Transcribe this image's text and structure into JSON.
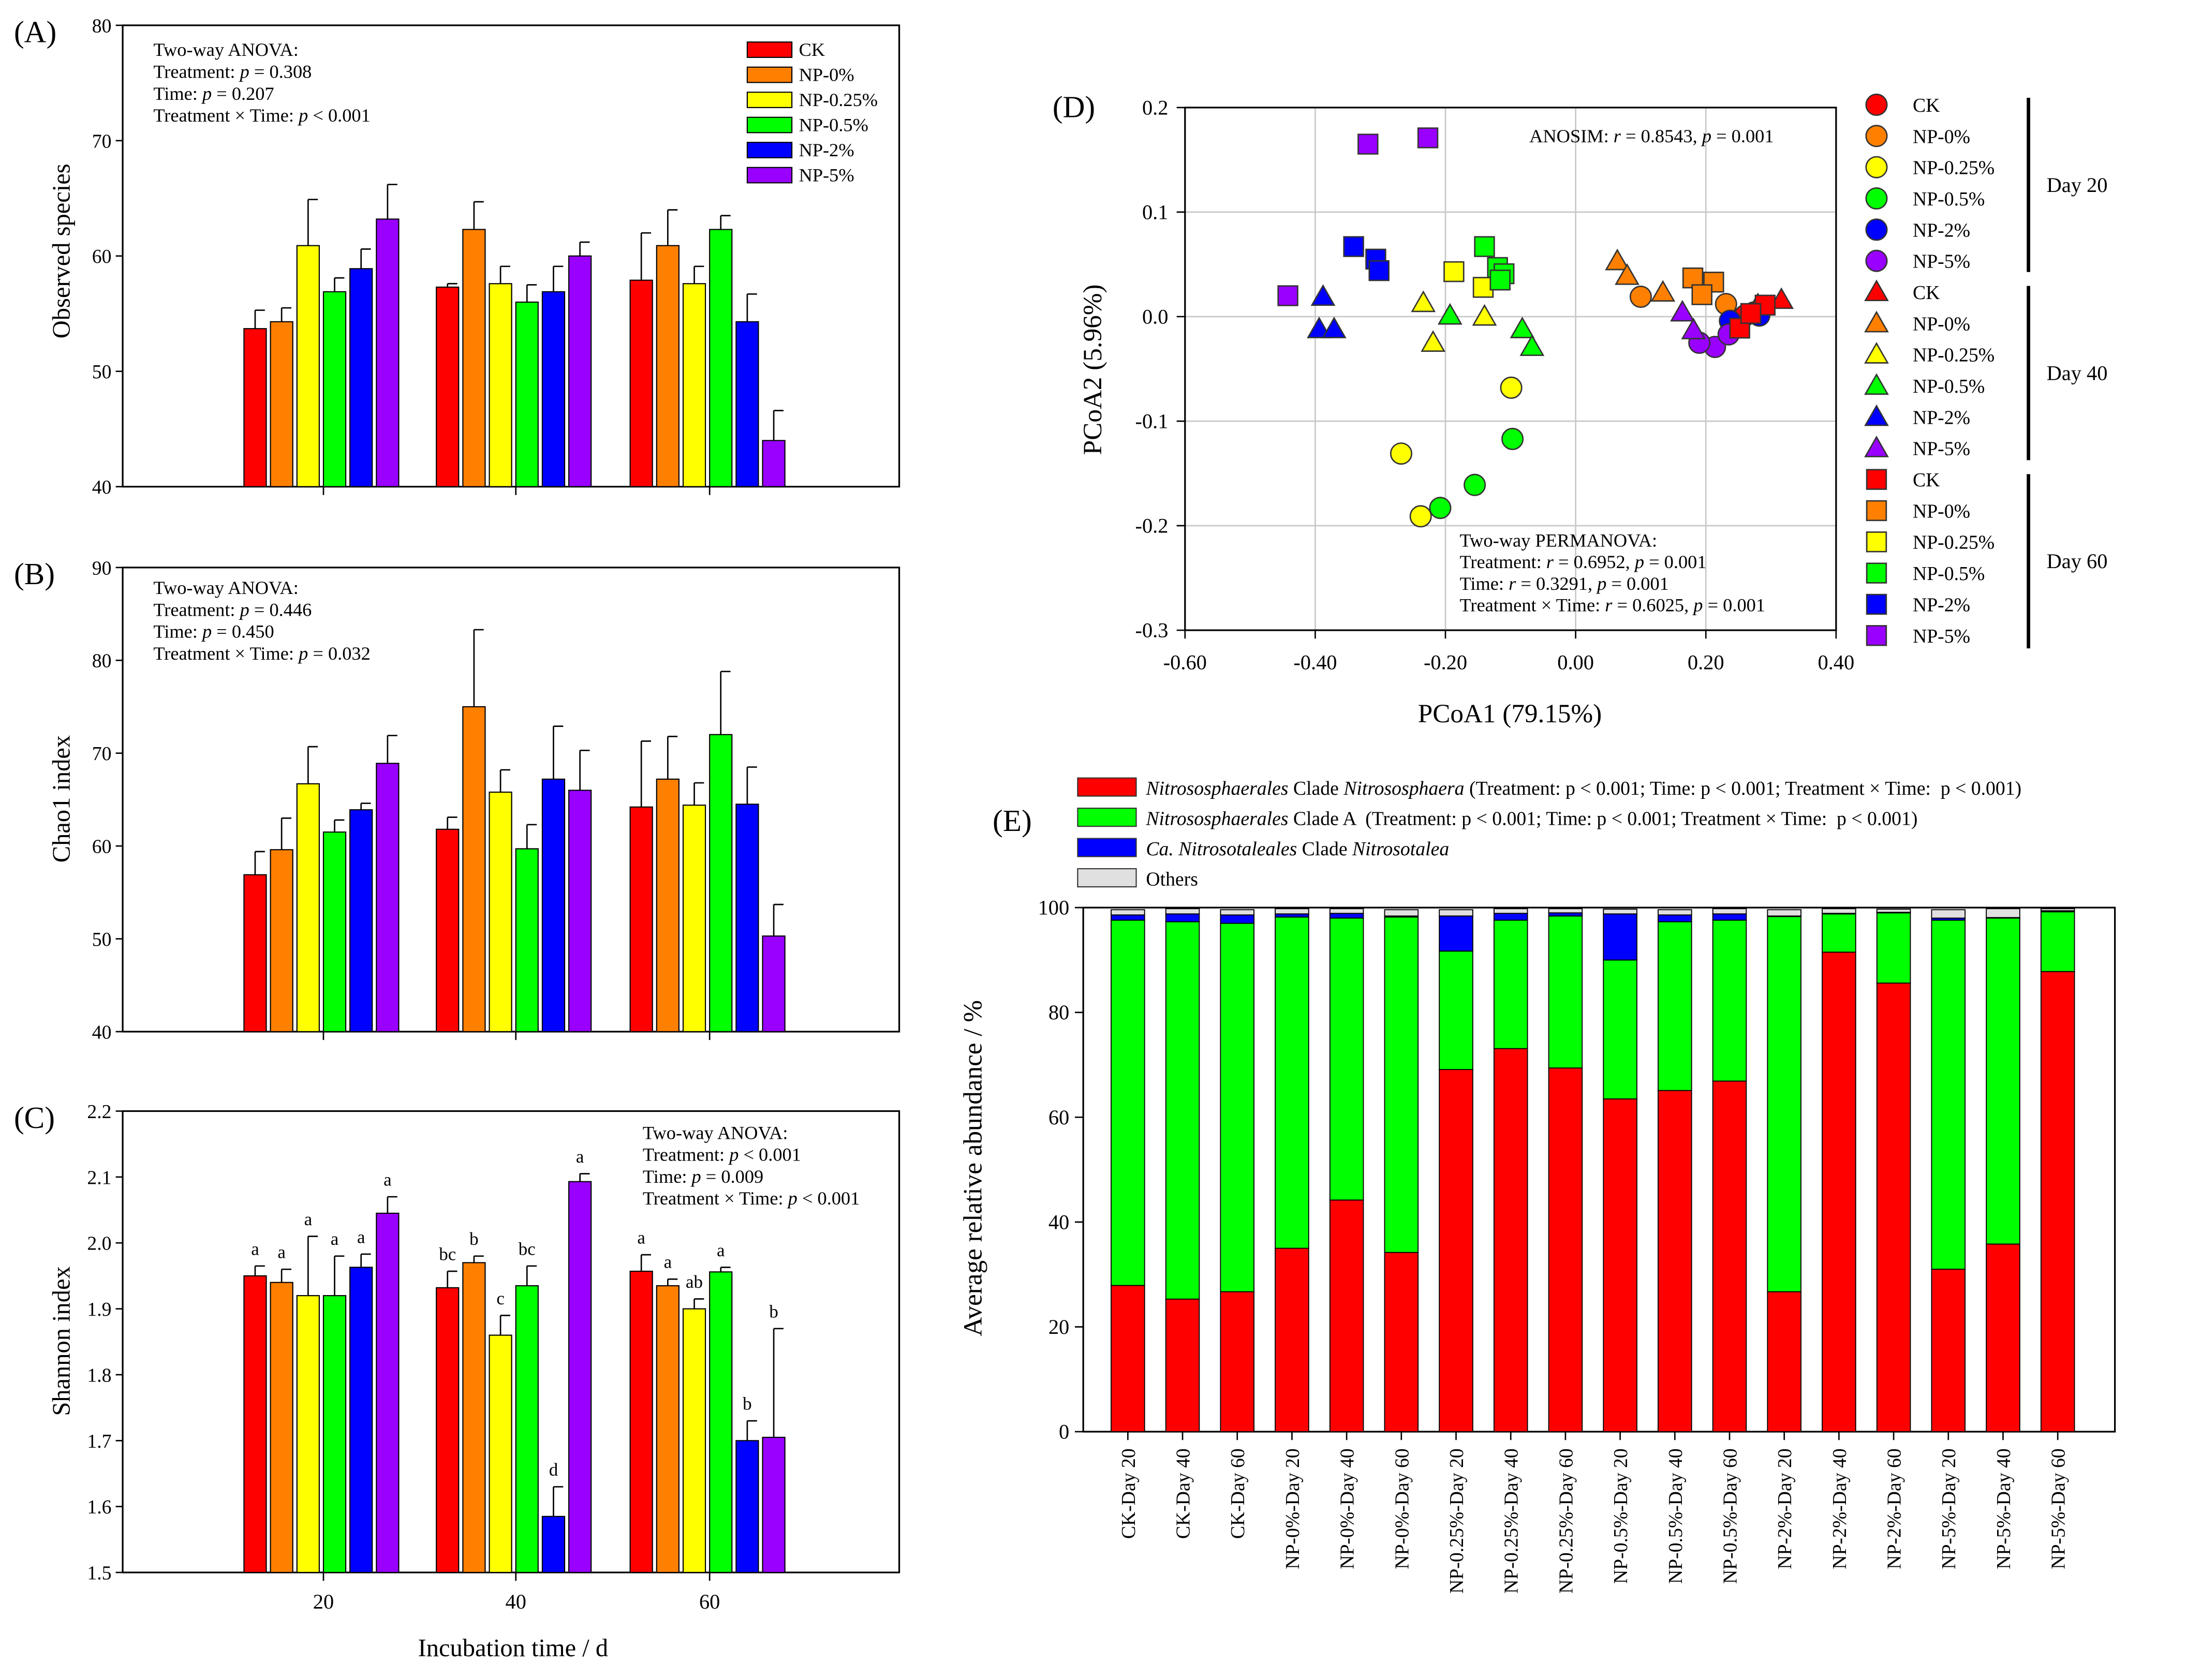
{
  "colors": {
    "CK": "#ff0000",
    "NP-0%": "#ff8000",
    "NP-0.25%": "#ffff00",
    "NP-0.5%": "#00ff00",
    "NP-2%": "#0000ff",
    "NP-5%": "#9900ff",
    "clade_nitrososphaera": "#ff0000",
    "clade_a": "#00ff00",
    "clade_nitrosotalea": "#0000ff",
    "others": "#e0e0e0"
  },
  "chart_data": [
    {
      "panel": "(A)",
      "type": "bar",
      "ylabel": "Observed species",
      "xlabel": "",
      "ylim": [
        40,
        80
      ],
      "yticks": [
        "40",
        "50",
        "60",
        "70",
        "80"
      ],
      "categories": [
        "20",
        "40",
        "60"
      ],
      "legend": [
        "CK",
        "NP-0%",
        "NP-0.25%",
        "NP-0.5%",
        "NP-2%",
        "NP-5%"
      ],
      "legend_position": "top-right",
      "annotation": [
        "Two-way ANOVA:",
        "Treatment: p = 0.308",
        "Time: p = 0.207",
        "Treatment × Time: p < 0.001"
      ],
      "series": [
        {
          "name": "CK",
          "values": [
            53.7,
            57.3,
            57.9
          ],
          "errors": [
            1.6,
            0.3,
            4.1
          ]
        },
        {
          "name": "NP-0%",
          "values": [
            54.3,
            62.3,
            60.9
          ],
          "errors": [
            1.2,
            2.4,
            3.1
          ]
        },
        {
          "name": "NP-0.25%",
          "values": [
            60.9,
            57.6,
            57.6
          ],
          "errors": [
            4.0,
            1.5,
            1.5
          ]
        },
        {
          "name": "NP-0.5%",
          "values": [
            56.9,
            56.0,
            62.3
          ],
          "errors": [
            1.2,
            1.5,
            1.2
          ]
        },
        {
          "name": "NP-2%",
          "values": [
            58.9,
            56.9,
            54.3
          ],
          "errors": [
            1.7,
            2.2,
            2.4
          ]
        },
        {
          "name": "NP-5%",
          "values": [
            63.2,
            60.0,
            44.0
          ],
          "errors": [
            3.0,
            1.2,
            2.6
          ]
        }
      ]
    },
    {
      "panel": "(B)",
      "type": "bar",
      "ylabel": "Chao1 index",
      "xlabel": "",
      "ylim": [
        40,
        90
      ],
      "yticks": [
        "40",
        "50",
        "60",
        "70",
        "80",
        "90"
      ],
      "categories": [
        "20",
        "40",
        "60"
      ],
      "annotation": [
        "Two-way ANOVA:",
        "Treatment: p = 0.446",
        "Time: p = 0.450",
        "Treatment × Time: p = 0.032"
      ],
      "series": [
        {
          "name": "CK",
          "values": [
            56.9,
            61.8,
            64.2
          ],
          "errors": [
            2.5,
            1.3,
            7.1
          ]
        },
        {
          "name": "NP-0%",
          "values": [
            59.6,
            75.0,
            67.2
          ],
          "errors": [
            3.4,
            8.3,
            4.6
          ]
        },
        {
          "name": "NP-0.25%",
          "values": [
            66.7,
            65.8,
            64.4
          ],
          "errors": [
            4.0,
            2.4,
            2.4
          ]
        },
        {
          "name": "NP-0.5%",
          "values": [
            61.5,
            59.7,
            72.0
          ],
          "errors": [
            1.3,
            2.6,
            6.8
          ]
        },
        {
          "name": "NP-2%",
          "values": [
            63.9,
            67.2,
            64.5
          ],
          "errors": [
            0.7,
            5.7,
            4.0
          ]
        },
        {
          "name": "NP-5%",
          "values": [
            68.9,
            66.0,
            50.3
          ],
          "errors": [
            3.0,
            4.3,
            3.4
          ]
        }
      ]
    },
    {
      "panel": "(C)",
      "type": "bar",
      "ylabel": "Shannon index",
      "xlabel": "Incubation time / d",
      "ylim": [
        1.5,
        2.2
      ],
      "yticks": [
        "1.5",
        "1.6",
        "1.7",
        "1.8",
        "1.9",
        "2.0",
        "2.1",
        "2.2"
      ],
      "categories": [
        "20",
        "40",
        "60"
      ],
      "annotation": [
        "Two-way ANOVA:",
        "Treatment: p < 0.001",
        "Time: p = 0.009",
        "Treatment × Time: p < 0.001"
      ],
      "series": [
        {
          "name": "CK",
          "values": [
            1.95,
            1.932,
            1.957
          ],
          "errors": [
            0.015,
            0.025,
            0.025
          ],
          "letters": [
            "a",
            "bc",
            "a"
          ]
        },
        {
          "name": "NP-0%",
          "values": [
            1.94,
            1.97,
            1.935
          ],
          "errors": [
            0.02,
            0.01,
            0.01
          ],
          "letters": [
            "a",
            "b",
            "a"
          ]
        },
        {
          "name": "NP-0.25%",
          "values": [
            1.92,
            1.86,
            1.9
          ],
          "errors": [
            0.09,
            0.03,
            0.015
          ],
          "letters": [
            "a",
            "c",
            "ab"
          ]
        },
        {
          "name": "NP-0.5%",
          "values": [
            1.92,
            1.935,
            1.956
          ],
          "errors": [
            0.06,
            0.03,
            0.007
          ],
          "letters": [
            "a",
            "bc",
            "a"
          ]
        },
        {
          "name": "NP-2%",
          "values": [
            1.963,
            1.585,
            1.7
          ],
          "errors": [
            0.02,
            0.045,
            0.03
          ],
          "letters": [
            "a",
            "d",
            "b"
          ]
        },
        {
          "name": "NP-5%",
          "values": [
            2.045,
            2.093,
            1.705
          ],
          "errors": [
            0.025,
            0.012,
            0.165
          ],
          "letters": [
            "a",
            "a",
            "b"
          ]
        }
      ]
    },
    {
      "panel": "(D)",
      "type": "scatter",
      "xlabel": "PCoA1 (79.15%)",
      "ylabel": "PCoA2 (5.96%)",
      "xlim": [
        -0.6,
        0.4
      ],
      "ylim": [
        -0.3,
        0.2
      ],
      "xticks": [
        "-0.60",
        "-0.40",
        "-0.20",
        "0.00",
        "0.20",
        "0.40"
      ],
      "yticks": [
        "-0.3",
        "-0.2",
        "-0.1",
        "0.0",
        "0.1",
        "0.2"
      ],
      "grid": true,
      "anosim": "ANOSIM: r = 0.8543, p = 0.001",
      "permanova": [
        "Two-way PERMANOVA:",
        "Treatment: r = 0.6952, p = 0.001",
        "Time: r = 0.3291, p = 0.001",
        "Treatment × Time: r = 0.6025, p = 0.001"
      ],
      "groups": [
        {
          "day": "Day 20",
          "marker": "circle",
          "series": [
            {
              "name": "CK",
              "points": [
                [
                  0.26,
                  0.001
                ],
                [
                  0.274,
                  0.004
                ]
              ]
            },
            {
              "name": "NP-0%",
              "points": [
                [
                  0.1,
                  0.019
                ],
                [
                  0.231,
                  0.012
                ]
              ]
            },
            {
              "name": "NP-0.25%",
              "points": [
                [
                  -0.268,
                  -0.131
                ],
                [
                  -0.238,
                  -0.191
                ],
                [
                  -0.099,
                  -0.068
                ]
              ]
            },
            {
              "name": "NP-0.5%",
              "points": [
                [
                  -0.208,
                  -0.183
                ],
                [
                  -0.155,
                  -0.161
                ],
                [
                  -0.097,
                  -0.117
                ]
              ]
            },
            {
              "name": "NP-2%",
              "points": [
                [
                  0.237,
                  -0.004
                ],
                [
                  0.282,
                  0.001
                ]
              ]
            },
            {
              "name": "NP-5%",
              "points": [
                [
                  0.214,
                  -0.029
                ],
                [
                  0.19,
                  -0.025
                ],
                [
                  0.235,
                  -0.017
                ]
              ]
            }
          ]
        },
        {
          "day": "Day 40",
          "marker": "triangle",
          "series": [
            {
              "name": "CK",
              "points": [
                [
                  0.316,
                  0.016
                ],
                [
                  0.28,
                  0.011
                ]
              ]
            },
            {
              "name": "NP-0%",
              "points": [
                [
                  0.064,
                  0.053
                ],
                [
                  0.079,
                  0.039
                ],
                [
                  0.134,
                  0.023
                ]
              ]
            },
            {
              "name": "NP-0.25%",
              "points": [
                [
                  -0.234,
                  0.013
                ],
                [
                  -0.219,
                  -0.025
                ],
                [
                  -0.14,
                  0.0
                ]
              ]
            },
            {
              "name": "NP-0.5%",
              "points": [
                [
                  -0.193,
                  0.001
                ],
                [
                  -0.082,
                  -0.012
                ],
                [
                  -0.067,
                  -0.029
                ]
              ]
            },
            {
              "name": "NP-2%",
              "points": [
                [
                  -0.388,
                  0.019
                ],
                [
                  -0.394,
                  -0.012
                ],
                [
                  -0.371,
                  -0.012
                ]
              ]
            },
            {
              "name": "NP-5%",
              "points": [
                [
                  0.164,
                  0.004
                ],
                [
                  0.181,
                  -0.013
                ]
              ]
            }
          ]
        },
        {
          "day": "Day 60",
          "marker": "square",
          "series": [
            {
              "name": "CK",
              "points": [
                [
                  0.252,
                  -0.011
                ],
                [
                  0.291,
                  0.011
                ],
                [
                  0.269,
                  0.003
                ]
              ]
            },
            {
              "name": "NP-0%",
              "points": [
                [
                  0.18,
                  0.037
                ],
                [
                  0.212,
                  0.033
                ],
                [
                  0.194,
                  0.021
                ]
              ]
            },
            {
              "name": "NP-0.25%",
              "points": [
                [
                  -0.187,
                  0.043
                ],
                [
                  -0.142,
                  0.028
                ]
              ]
            },
            {
              "name": "NP-0.5%",
              "points": [
                [
                  -0.14,
                  0.067
                ],
                [
                  -0.12,
                  0.047
                ],
                [
                  -0.11,
                  0.041
                ],
                [
                  -0.116,
                  0.035
                ]
              ]
            },
            {
              "name": "NP-2%",
              "points": [
                [
                  -0.341,
                  0.067
                ],
                [
                  -0.307,
                  0.055
                ],
                [
                  -0.302,
                  0.044
                ]
              ]
            },
            {
              "name": "NP-5%",
              "points": [
                [
                  -0.442,
                  0.02
                ],
                [
                  -0.319,
                  0.165
                ],
                [
                  -0.227,
                  0.171
                ]
              ]
            }
          ]
        }
      ]
    },
    {
      "panel": "(E)",
      "type": "bar",
      "stacked": true,
      "ylabel": "Average relative abundance / %",
      "xlabel": "",
      "ylim": [
        0,
        100
      ],
      "yticks": [
        "0",
        "20",
        "40",
        "60",
        "80",
        "100"
      ],
      "categories": [
        "CK-Day 20",
        "CK-Day 40",
        "CK-Day 60",
        "NP-0%-Day 20",
        "NP-0%-Day 40",
        "NP-0%-Day 60",
        "NP-0.25%-Day 20",
        "NP-0.25%-Day 40",
        "NP-0.25%-Day 60",
        "NP-0.5%-Day 20",
        "NP-0.5%-Day 40",
        "NP-0.5%-Day 60",
        "NP-2%-Day 20",
        "NP-2%-Day 40",
        "NP-2%-Day 60",
        "NP-5%-Day 20",
        "NP-5%-Day 40",
        "NP-5%-Day 60"
      ],
      "legend": [
        [
          {
            "t": "Nitrososphaerales",
            "i": true
          },
          {
            "t": " Clade ",
            "i": false
          },
          {
            "t": "Nitrososphaera",
            "i": true
          },
          {
            "t": " (Treatment: p < 0.001; Time: p < 0.001; Treatment × Time:  p < 0.001)",
            "i": false
          }
        ],
        [
          {
            "t": "Nitrososphaerales",
            "i": true
          },
          {
            "t": " Clade A  (Treatment: p < 0.001; Time: p < 0.001; Treatment × Time:  p < 0.001)",
            "i": false
          }
        ],
        [
          {
            "t": "Ca. Nitrosotaleales",
            "i": true
          },
          {
            "t": " Clade ",
            "i": false
          },
          {
            "t": "Nitrosotalea",
            "i": true
          }
        ],
        [
          {
            "t": "Others",
            "i": false
          }
        ]
      ],
      "series": [
        {
          "name": "Nitrososphaerales Clade Nitrososphaera",
          "values": [
            27.9,
            25.3,
            26.7,
            35.0,
            44.2,
            34.2,
            69.1,
            73.1,
            69.4,
            63.5,
            65.1,
            66.9,
            26.7,
            91.5,
            85.6,
            31.0,
            35.8,
            87.8
          ]
        },
        {
          "name": "Nitrososphaerales Clade A",
          "values": [
            69.7,
            72.0,
            70.3,
            63.2,
            53.8,
            64.0,
            22.6,
            24.5,
            29.0,
            26.5,
            32.2,
            30.7,
            71.6,
            7.3,
            13.4,
            66.6,
            62.2,
            11.4
          ]
        },
        {
          "name": "Ca. Nitrosotaleales Clade Nitrosotalea",
          "values": [
            1.0,
            1.5,
            1.6,
            0.6,
            0.9,
            0.2,
            6.7,
            1.3,
            0.6,
            8.8,
            1.3,
            1.2,
            0.1,
            0.1,
            0.1,
            0.4,
            0.1,
            0.2
          ]
        },
        {
          "name": "Others",
          "values": [
            1.0,
            1.0,
            1.0,
            1.0,
            0.9,
            1.2,
            1.2,
            0.9,
            0.8,
            0.9,
            1.0,
            1.0,
            1.2,
            0.9,
            0.6,
            1.6,
            1.7,
            0.4
          ]
        }
      ]
    }
  ]
}
